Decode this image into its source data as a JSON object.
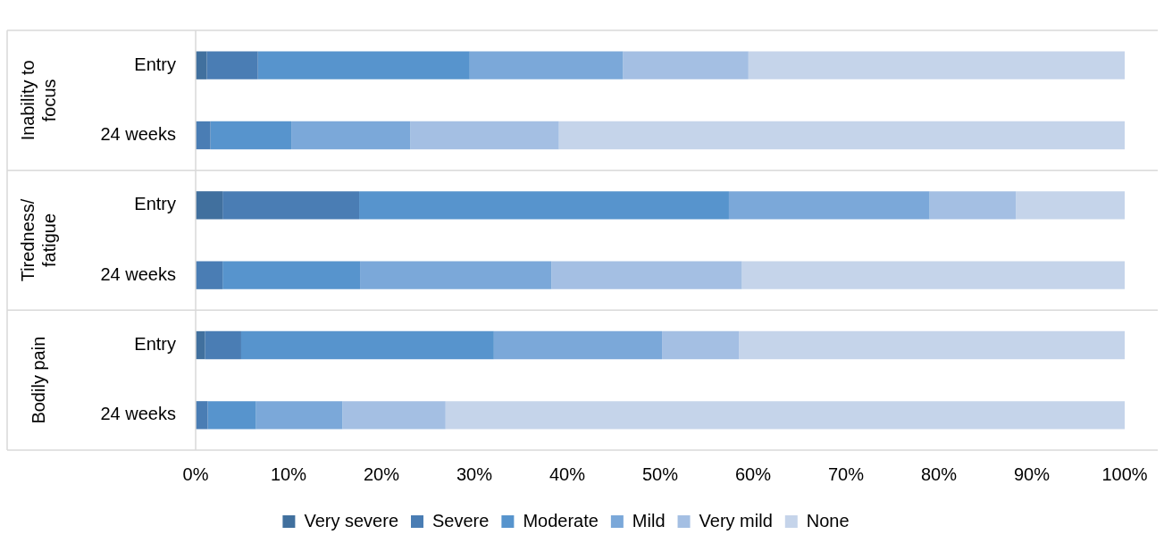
{
  "chart_data": {
    "type": "bar",
    "orientation": "horizontal",
    "stacked": true,
    "categories": [
      "Entry",
      "24 weeks",
      "Entry",
      "24 weeks",
      "Entry",
      "24 weeks"
    ],
    "series": [
      {
        "name": "Very severe",
        "color": "#41709e",
        "values": [
          1.2,
          0,
          2.9,
          0,
          1.0,
          0
        ]
      },
      {
        "name": "Severe",
        "color": "#4a7db4",
        "values": [
          5.5,
          1.6,
          14.7,
          2.9,
          3.9,
          1.3
        ]
      },
      {
        "name": "Moderate",
        "color": "#5794cd",
        "values": [
          22.8,
          8.7,
          39.8,
          14.8,
          27.2,
          5.2
        ]
      },
      {
        "name": "Mild",
        "color": "#7ba8d9",
        "values": [
          16.5,
          12.8,
          21.6,
          20.6,
          18.1,
          9.3
        ]
      },
      {
        "name": "Very mild",
        "color": "#a4bfe3",
        "values": [
          13.5,
          16.0,
          9.3,
          20.5,
          8.3,
          11.1
        ]
      },
      {
        "name": "None",
        "color": "#c5d4ea",
        "values": [
          40.5,
          60.9,
          11.7,
          41.2,
          41.5,
          73.1
        ]
      }
    ],
    "xlim": [
      0,
      100
    ],
    "xticks": [
      {
        "value": 0,
        "label": "0%"
      },
      {
        "value": 10,
        "label": "10%"
      },
      {
        "value": 20,
        "label": "20%"
      },
      {
        "value": 30,
        "label": "30%"
      },
      {
        "value": 40,
        "label": "40%"
      },
      {
        "value": 50,
        "label": "50%"
      },
      {
        "value": 60,
        "label": "60%"
      },
      {
        "value": 70,
        "label": "70%"
      },
      {
        "value": 80,
        "label": "80%"
      },
      {
        "value": 90,
        "label": "90%"
      },
      {
        "value": 100,
        "label": "100%"
      }
    ],
    "annotations": [
      "Inability to focus",
      "Tiredness/ fatigue",
      "Bodily pain"
    ],
    "legend": "bottom"
  }
}
